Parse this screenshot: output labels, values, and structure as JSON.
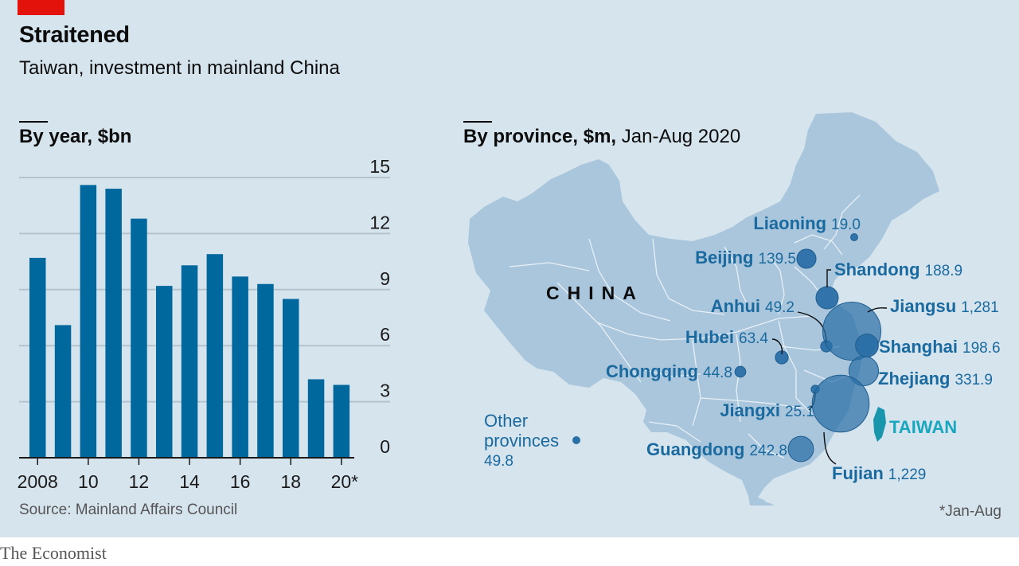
{
  "header": {
    "title": "Straitened",
    "subtitle": "Taiwan, investment in mainland China"
  },
  "left_panel": {
    "title_bold": "By year, $bn",
    "title_light": ""
  },
  "right_panel": {
    "title_bold": "By province, $m,",
    "title_light": "Jan-Aug 2020"
  },
  "footer": {
    "source": "Source: Mainland Affairs Council",
    "note": "*Jan-Aug",
    "brand": "The Economist"
  },
  "colors": {
    "background": "#d6e4ee",
    "bar": "#00689d",
    "map_land": "#a9c6dc",
    "bubble": "#2a6fa6",
    "label": "#1a6aa0",
    "taiwan": "#18a7bf",
    "accent_red": "#e3120b"
  },
  "chart_data": [
    {
      "type": "bar",
      "title": "By year, $bn",
      "categories": [
        "2008",
        "2009",
        "2010",
        "2011",
        "2012",
        "2013",
        "2014",
        "2015",
        "2016",
        "2017",
        "2018",
        "2019",
        "2020*"
      ],
      "values": [
        10.7,
        7.1,
        14.6,
        14.4,
        12.8,
        9.2,
        10.3,
        10.9,
        9.7,
        9.3,
        8.5,
        4.2,
        3.9
      ],
      "tick_labels": [
        "2008",
        "10",
        "12",
        "14",
        "16",
        "18",
        "20*"
      ],
      "y_ticks": [
        "0",
        "3",
        "6",
        "9",
        "12",
        "15"
      ],
      "ylim": [
        0,
        15
      ],
      "grid": true,
      "y_axis_side": "right"
    },
    {
      "type": "bubble-map",
      "title": "By province, $m, Jan-Aug 2020",
      "map_label": "CHINA",
      "taiwan_label": "TAIWAN",
      "points": [
        {
          "name": "Liaoning",
          "value": "19.0",
          "v": 19.0
        },
        {
          "name": "Beijing",
          "value": "139.5",
          "v": 139.5
        },
        {
          "name": "Shandong",
          "value": "188.9",
          "v": 188.9
        },
        {
          "name": "Anhui",
          "value": "49.2",
          "v": 49.2
        },
        {
          "name": "Jiangsu",
          "value": "1,281",
          "v": 1281
        },
        {
          "name": "Hubei",
          "value": "63.4",
          "v": 63.4
        },
        {
          "name": "Shanghai",
          "value": "198.6",
          "v": 198.6
        },
        {
          "name": "Chongqing",
          "value": "44.8",
          "v": 44.8
        },
        {
          "name": "Zhejiang",
          "value": "331.9",
          "v": 331.9
        },
        {
          "name": "Jiangxi",
          "value": "25.1",
          "v": 25.1
        },
        {
          "name": "Guangdong",
          "value": "242.8",
          "v": 242.8
        },
        {
          "name": "Fujian",
          "value": "1,229",
          "v": 1229
        }
      ],
      "other": {
        "line1": "Other",
        "line2": "provinces",
        "value": "49.8",
        "v": 49.8
      }
    }
  ]
}
